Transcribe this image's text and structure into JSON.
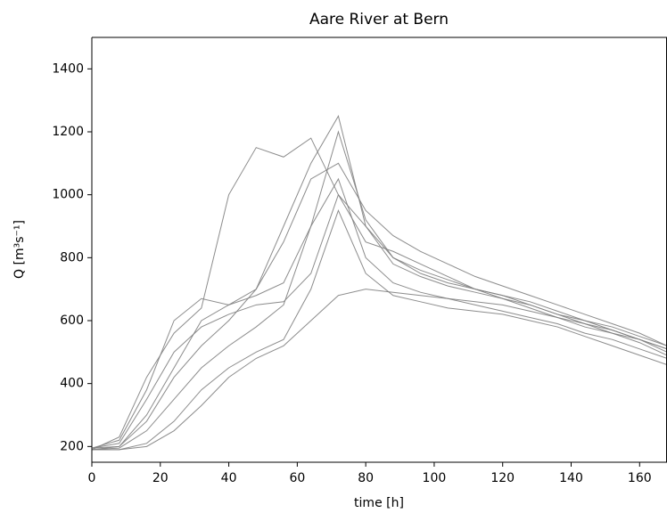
{
  "chart_data": {
    "type": "line",
    "title": "Aare River at Bern",
    "xlabel": "time [h]",
    "ylabel": "Q [m³s⁻¹]",
    "color": "#808080",
    "x": [
      0,
      8,
      16,
      24,
      32,
      40,
      48,
      56,
      64,
      72,
      80,
      88,
      96,
      104,
      112,
      120,
      128,
      136,
      144,
      152,
      160,
      168
    ],
    "series": [
      {
        "values": [
          190,
          230,
          420,
          560,
          640,
          1000,
          1150,
          1120,
          1180,
          1000,
          850,
          820,
          780,
          740,
          700,
          670,
          640,
          610,
          580,
          560,
          540,
          510
        ]
      },
      {
        "values": [
          195,
          200,
          300,
          450,
          600,
          650,
          700,
          900,
          1100,
          1250,
          900,
          800,
          760,
          730,
          700,
          680,
          650,
          620,
          600,
          570,
          540,
          500
        ]
      },
      {
        "values": [
          190,
          195,
          250,
          350,
          450,
          520,
          580,
          650,
          900,
          1050,
          800,
          720,
          690,
          670,
          650,
          630,
          610,
          590,
          560,
          540,
          510,
          480
        ]
      },
      {
        "values": [
          190,
          190,
          210,
          280,
          380,
          450,
          500,
          540,
          700,
          950,
          750,
          680,
          660,
          640,
          630,
          620,
          600,
          580,
          550,
          520,
          490,
          460
        ]
      },
      {
        "values": [
          195,
          210,
          350,
          500,
          580,
          620,
          650,
          660,
          750,
          1000,
          900,
          780,
          740,
          710,
          690,
          670,
          650,
          620,
          590,
          560,
          530,
          490
        ]
      },
      {
        "values": [
          190,
          200,
          280,
          420,
          520,
          600,
          700,
          850,
          1050,
          1100,
          950,
          870,
          820,
          780,
          740,
          710,
          680,
          650,
          620,
          590,
          560,
          520
        ]
      },
      {
        "values": [
          190,
          190,
          200,
          250,
          330,
          420,
          480,
          520,
          600,
          680,
          700,
          690,
          680,
          670,
          660,
          650,
          630,
          610,
          590,
          570,
          540,
          510
        ]
      },
      {
        "values": [
          195,
          220,
          380,
          600,
          670,
          650,
          680,
          720,
          900,
          1200,
          920,
          800,
          750,
          720,
          700,
          680,
          660,
          630,
          600,
          580,
          550,
          520
        ]
      }
    ],
    "xlim": [
      0,
      168
    ],
    "xticks": [
      0,
      20,
      40,
      60,
      80,
      100,
      120,
      140,
      160
    ],
    "ylim": [
      150,
      1500
    ],
    "yticks": [
      200,
      400,
      600,
      800,
      1000,
      1200,
      1400
    ],
    "grid": false
  }
}
